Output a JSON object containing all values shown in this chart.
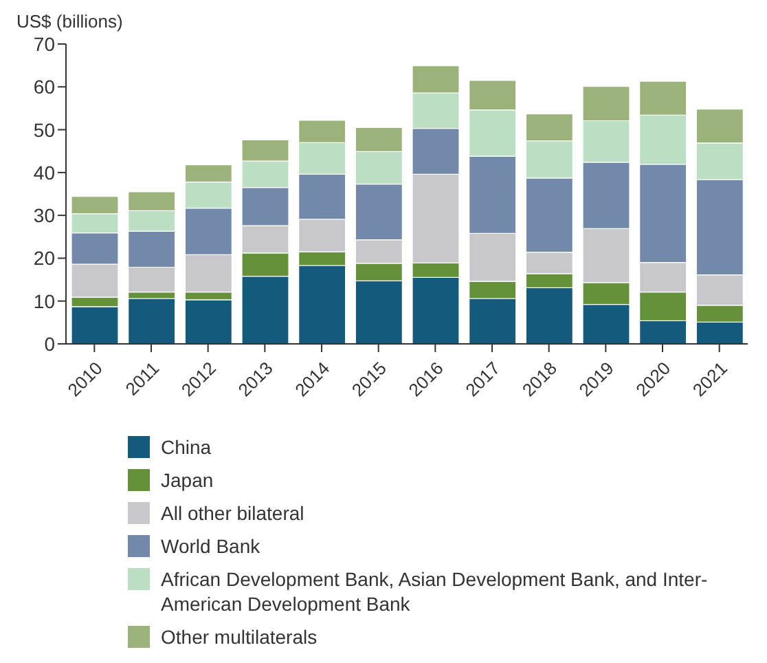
{
  "chart_data": {
    "type": "bar",
    "ylabel": "US$ (billions)",
    "stacked": true,
    "categories": [
      "2010",
      "2011",
      "2012",
      "2013",
      "2014",
      "2015",
      "2016",
      "2017",
      "2018",
      "2019",
      "2020",
      "2021"
    ],
    "series": [
      {
        "name": "China",
        "color": "#135a7c",
        "values": [
          8.7,
          10.6,
          10.3,
          15.8,
          18.3,
          14.7,
          15.5,
          10.6,
          13.1,
          9.2,
          5.4,
          5.1
        ]
      },
      {
        "name": "Japan",
        "color": "#65913b",
        "values": [
          2.2,
          1.5,
          1.8,
          5.4,
          3.2,
          4.1,
          3.4,
          4.0,
          3.3,
          5.1,
          6.7,
          3.9
        ]
      },
      {
        "name": "All other bilateral",
        "color": "#c8c7cc",
        "values": [
          7.7,
          5.8,
          8.7,
          6.4,
          7.6,
          5.5,
          20.7,
          11.2,
          5.0,
          12.6,
          6.9,
          7.1
        ]
      },
      {
        "name": "World Bank",
        "color": "#7389a9",
        "values": [
          7.3,
          8.4,
          10.9,
          8.9,
          10.5,
          13.0,
          10.7,
          18.0,
          17.3,
          15.5,
          22.9,
          22.2
        ]
      },
      {
        "name": "African Development Bank, Asian Development Bank, and Inter-American Development Bank",
        "color": "#bcdfc3",
        "values": [
          4.5,
          4.8,
          6.1,
          6.2,
          7.4,
          7.6,
          8.3,
          10.8,
          8.7,
          9.7,
          11.5,
          8.6
        ]
      },
      {
        "name": "Other multilaterals",
        "color": "#9bb27a",
        "values": [
          4.0,
          4.4,
          4.0,
          4.9,
          5.2,
          5.6,
          6.3,
          6.9,
          6.3,
          8.0,
          7.9,
          7.9
        ]
      }
    ],
    "ylim": [
      0,
      70
    ],
    "yticks": [
      0,
      10,
      20,
      30,
      40,
      50,
      60,
      70
    ],
    "grid": false,
    "legend": "bottom"
  }
}
